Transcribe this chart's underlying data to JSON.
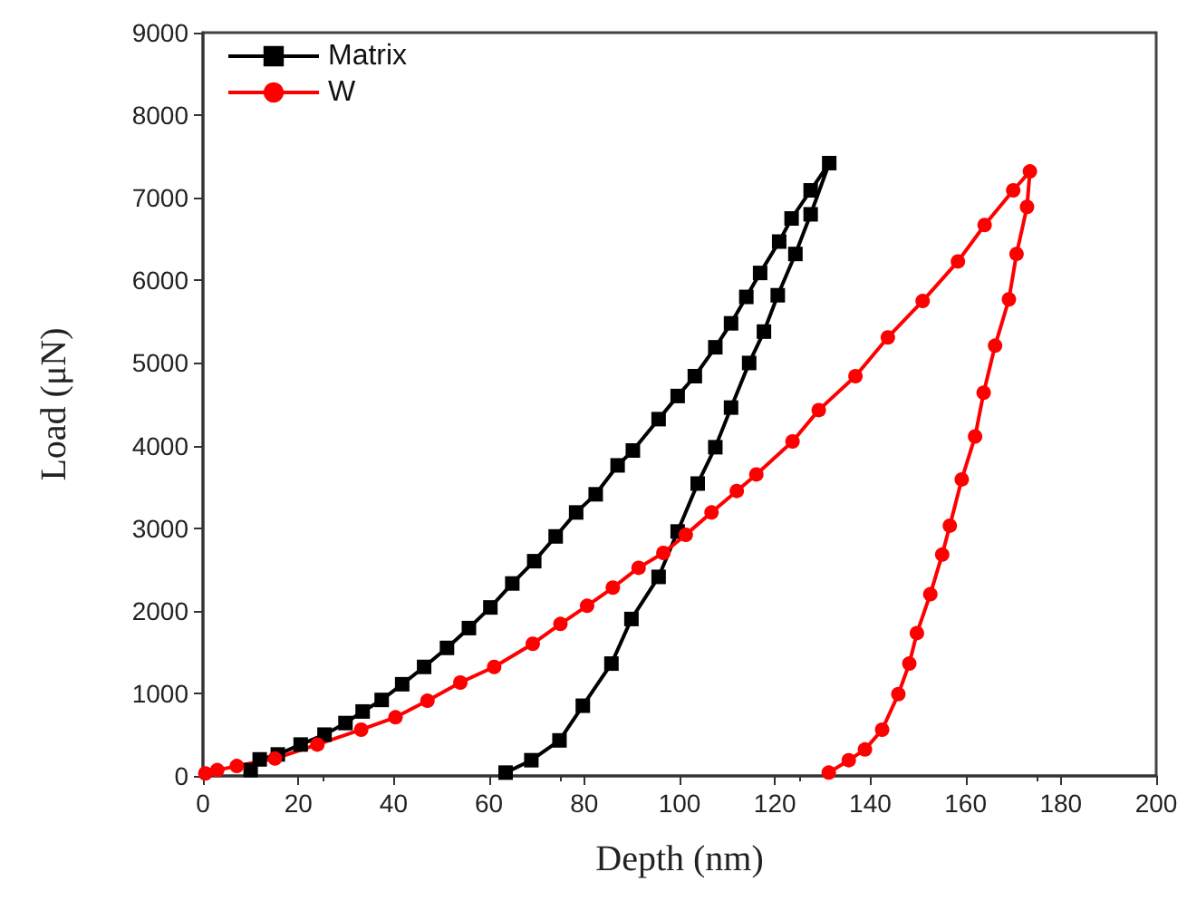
{
  "chart_data": {
    "type": "line",
    "xlabel": "Depth (nm)",
    "ylabel": "Load (μN)",
    "xlim": [
      0,
      200
    ],
    "xticks": [
      0,
      20,
      40,
      60,
      80,
      100,
      120,
      140,
      160,
      180,
      200
    ],
    "ylim": [
      0,
      9000
    ],
    "yticks": [
      0,
      1000,
      2000,
      3000,
      4000,
      5000,
      6000,
      7000,
      8000,
      9000
    ],
    "grid": false,
    "legend": "top left",
    "series": [
      {
        "name": "Matrix",
        "color": "#000000",
        "marker": "square",
        "x": [
          10,
          11.9,
          15.7,
          20.5,
          25.5,
          29.9,
          33.5,
          37.5,
          41.8,
          46.4,
          51.2,
          55.8,
          60.3,
          64.9,
          69.5,
          74,
          78.3,
          82.4,
          87,
          90.2,
          95.6,
          99.6,
          103.2,
          107.5,
          110.8,
          114,
          116.9,
          120.9,
          123.5,
          127.5,
          131.4,
          127.5,
          124.3,
          120.6,
          117.7,
          114.6,
          110.8,
          107.5,
          103.8,
          99.6,
          95.6,
          89.9,
          85.7,
          79.7,
          74.8,
          68.9,
          63.5
        ],
        "values": [
          70,
          200,
          260,
          380,
          500,
          640,
          780,
          920,
          1110,
          1320,
          1550,
          1790,
          2040,
          2330,
          2600,
          2900,
          3190,
          3410,
          3760,
          3940,
          4320,
          4600,
          4840,
          5190,
          5480,
          5800,
          6090,
          6470,
          6750,
          7090,
          7420,
          6800,
          6320,
          5820,
          5380,
          5000,
          4460,
          3980,
          3540,
          2960,
          2410,
          1900,
          1360,
          850,
          430,
          190,
          40
        ]
      },
      {
        "name": "W",
        "color": "#ff0000",
        "marker": "circle",
        "x": [
          0.5,
          3,
          7.1,
          15.1,
          24,
          33.2,
          40.4,
          47.1,
          54,
          61.1,
          69.2,
          75,
          80.6,
          86,
          91.4,
          96.6,
          101.3,
          106.7,
          112,
          116.1,
          123.7,
          129.2,
          136.9,
          143.7,
          151,
          158.4,
          164,
          170,
          173.5,
          172.9,
          170.7,
          169.1,
          166.2,
          163.8,
          162,
          159.2,
          156.7,
          155.1,
          152.6,
          149.8,
          148.2,
          145.9,
          142.5,
          138.9,
          135.5,
          131.3
        ],
        "values": [
          30,
          70,
          120,
          210,
          380,
          560,
          710,
          910,
          1130,
          1320,
          1600,
          1840,
          2060,
          2280,
          2520,
          2700,
          2920,
          3190,
          3450,
          3650,
          4050,
          4430,
          4840,
          5310,
          5750,
          6230,
          6670,
          7090,
          7320,
          6890,
          6320,
          5770,
          5210,
          4640,
          4110,
          3590,
          3030,
          2680,
          2200,
          1730,
          1360,
          990,
          560,
          320,
          190,
          40
        ]
      }
    ]
  }
}
